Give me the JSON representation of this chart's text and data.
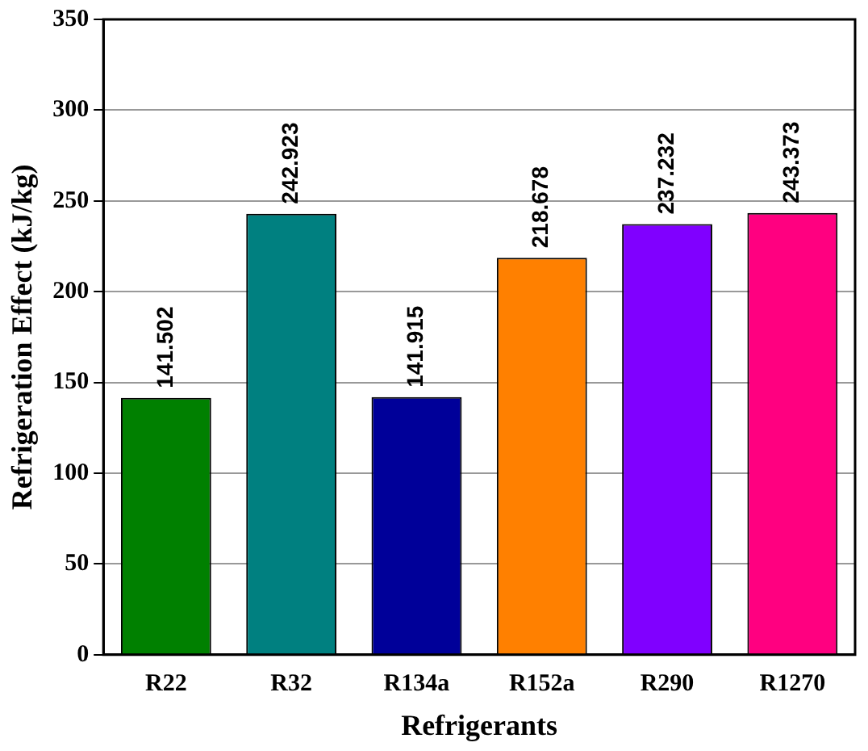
{
  "chart_data": {
    "type": "bar",
    "xlabel": "Refrigerants",
    "ylabel": "Refrigeration Effect (kJ/kg)",
    "categories": [
      "R22",
      "R32",
      "R134a",
      "R152a",
      "R290",
      "R1270"
    ],
    "values": [
      141.502,
      242.923,
      141.915,
      218.678,
      237.232,
      243.373
    ],
    "colors": [
      "#008000",
      "#008080",
      "#000099",
      "#ff8000",
      "#8000ff",
      "#ff0080"
    ],
    "ylim": [
      0,
      350
    ],
    "yticks": [
      0,
      50,
      100,
      150,
      200,
      250,
      300,
      350
    ],
    "grid": "y",
    "data_labels": true,
    "legend": false
  }
}
